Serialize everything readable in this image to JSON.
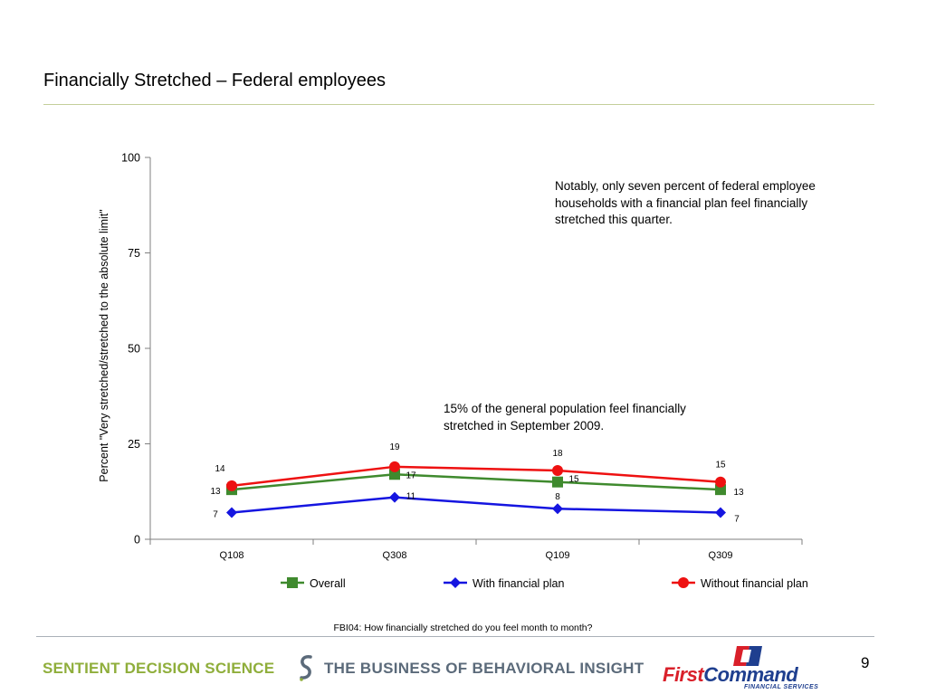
{
  "slide": {
    "title": "Financially Stretched – Federal employees",
    "footnote": "FBI04: How financially stretched do you feel month to month?",
    "page_number": "9"
  },
  "notes": {
    "federal_plan": "Notably, only seven percent of federal employee households with a financial plan feel financially stretched this quarter.",
    "general_population": "15% of the general population feel financially stretched in September 2009."
  },
  "footer": {
    "left_logo": "SENTIENT DECISION SCIENCE",
    "tagline": "THE BUSINESS OF BEHAVIORAL INSIGHT",
    "right_logo_first": "First",
    "right_logo_second": "Command",
    "right_logo_sub": "FINANCIAL SERVICES"
  },
  "chart_data": {
    "type": "line",
    "title": "",
    "xlabel": "",
    "ylabel": "Percent \"Very stretched/stretched to the absolute limit\"",
    "categories": [
      "Q108",
      "Q308",
      "Q109",
      "Q309"
    ],
    "ylim": [
      0,
      100
    ],
    "yticks": [
      0,
      25,
      50,
      75,
      100
    ],
    "grid": false,
    "legend": "bottom",
    "series": [
      {
        "name": "Overall",
        "values": [
          13,
          17,
          15,
          13
        ],
        "color": "#3f8a2e",
        "marker": "square"
      },
      {
        "name": "With financial plan",
        "values": [
          7,
          11,
          8,
          7
        ],
        "color": "#1515e0",
        "marker": "diamond"
      },
      {
        "name": "Without financial plan",
        "values": [
          14,
          19,
          18,
          15
        ],
        "color": "#ee1111",
        "marker": "circle"
      }
    ]
  }
}
